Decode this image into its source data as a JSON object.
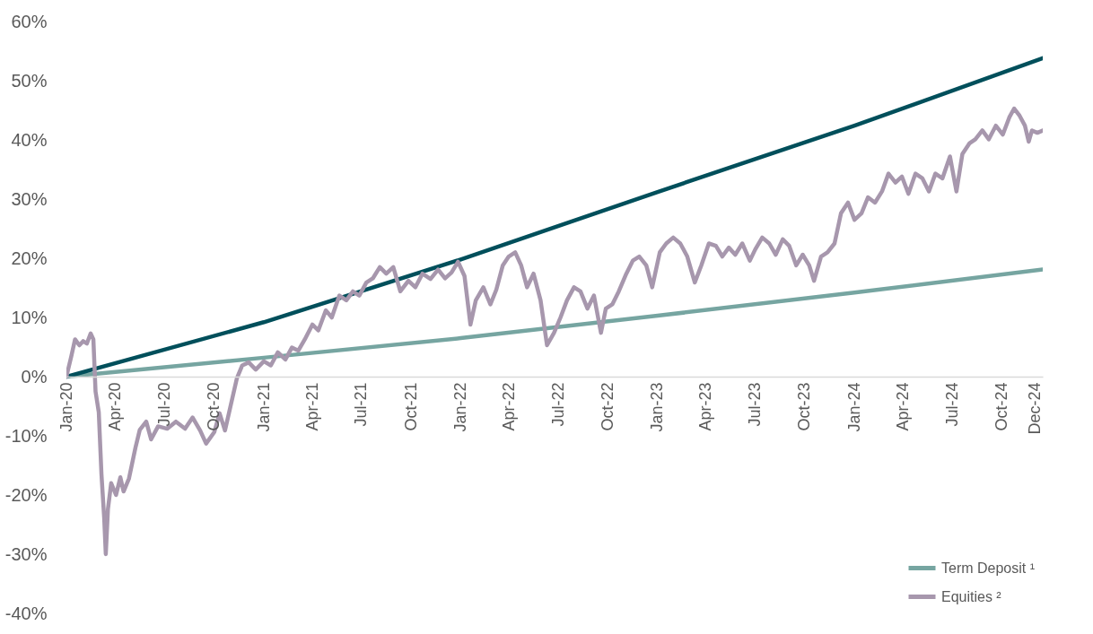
{
  "chart_data": {
    "type": "line",
    "legend": "bottom right",
    "line_style": "solid",
    "xlim": [
      "2020-01-01",
      "2024-12-15"
    ],
    "xticks": [
      {
        "value": "2020-01-01",
        "label": "Jan-20"
      },
      {
        "value": "2020-04-01",
        "label": "Apr-20"
      },
      {
        "value": "2020-07-01",
        "label": "Jul-20"
      },
      {
        "value": "2020-10-01",
        "label": "Oct-20"
      },
      {
        "value": "2021-01-01",
        "label": "Jan-21"
      },
      {
        "value": "2021-04-01",
        "label": "Apr-21"
      },
      {
        "value": "2021-07-01",
        "label": "Jul-21"
      },
      {
        "value": "2021-10-01",
        "label": "Oct-21"
      },
      {
        "value": "2022-01-01",
        "label": "Jan-22"
      },
      {
        "value": "2022-04-01",
        "label": "Apr-22"
      },
      {
        "value": "2022-07-01",
        "label": "Jul-22"
      },
      {
        "value": "2022-10-01",
        "label": "Oct-22"
      },
      {
        "value": "2023-01-01",
        "label": "Jan-23"
      },
      {
        "value": "2023-04-01",
        "label": "Apr-23"
      },
      {
        "value": "2023-07-01",
        "label": "Jul-23"
      },
      {
        "value": "2023-10-01",
        "label": "Oct-23"
      },
      {
        "value": "2024-01-01",
        "label": "Jan-24"
      },
      {
        "value": "2024-04-01",
        "label": "Apr-24"
      },
      {
        "value": "2024-07-01",
        "label": "Jul-24"
      },
      {
        "value": "2024-10-01",
        "label": "Oct-24"
      },
      {
        "value": "2024-12-01",
        "label": "Dec-24"
      }
    ],
    "ylim": [
      -40,
      60
    ],
    "yticks": [
      {
        "value": -40,
        "label": "-40%"
      },
      {
        "value": -30,
        "label": "-30%"
      },
      {
        "value": -20,
        "label": "-20%"
      },
      {
        "value": -10,
        "label": "-10%"
      },
      {
        "value": 0,
        "label": "0%"
      },
      {
        "value": 10,
        "label": "10%"
      },
      {
        "value": 20,
        "label": "20%"
      },
      {
        "value": 30,
        "label": "30%"
      },
      {
        "value": 40,
        "label": "40%"
      },
      {
        "value": 50,
        "label": "50%"
      },
      {
        "value": 60,
        "label": "60%"
      }
    ],
    "series": [
      {
        "name": "Term Deposit ¹",
        "color": "#76a5a1",
        "x": [
          "2020-01-01",
          "2021-01-01",
          "2022-01-01",
          "2023-01-01",
          "2024-01-01",
          "2024-12-15"
        ],
        "values": [
          0,
          3.2,
          6.5,
          10.3,
          14.2,
          18.1
        ]
      },
      {
        "color": "#004f5b",
        "x": [
          "2020-01-01",
          "2021-01-01",
          "2022-01-01",
          "2023-01-01",
          "2024-01-01",
          "2024-12-15"
        ],
        "values": [
          0,
          9.2,
          19.8,
          31.2,
          42.4,
          53.8
        ]
      },
      {
        "name": "Equities ²",
        "color": "#a797ad",
        "x": [
          "2020-01-01",
          "2020-01-10",
          "2020-01-17",
          "2020-01-25",
          "2020-02-01",
          "2020-02-08",
          "2020-02-15",
          "2020-02-20",
          "2020-02-24",
          "2020-03-01",
          "2020-03-06",
          "2020-03-11",
          "2020-03-14",
          "2020-03-18",
          "2020-03-24",
          "2020-04-02",
          "2020-04-10",
          "2020-04-16",
          "2020-04-26",
          "2020-05-08",
          "2020-05-16",
          "2020-05-28",
          "2020-06-06",
          "2020-06-19",
          "2020-07-06",
          "2020-07-22",
          "2020-08-08",
          "2020-08-22",
          "2020-09-05",
          "2020-09-16",
          "2020-10-01",
          "2020-10-11",
          "2020-10-21",
          "2020-11-01",
          "2020-11-12",
          "2020-11-22",
          "2020-12-04",
          "2020-12-17",
          "2021-01-01",
          "2021-01-14",
          "2021-01-27",
          "2021-02-10",
          "2021-02-22",
          "2021-03-06",
          "2021-03-18",
          "2021-04-01",
          "2021-04-12",
          "2021-04-26",
          "2021-05-07",
          "2021-05-21",
          "2021-06-03",
          "2021-06-15",
          "2021-06-27",
          "2021-07-10",
          "2021-07-22",
          "2021-08-04",
          "2021-08-16",
          "2021-08-29",
          "2021-09-11",
          "2021-09-26",
          "2021-10-09",
          "2021-10-22",
          "2021-11-06",
          "2021-11-20",
          "2021-12-03",
          "2021-12-15",
          "2021-12-27",
          "2022-01-08",
          "2022-01-19",
          "2022-01-29",
          "2022-02-12",
          "2022-02-25",
          "2022-03-08",
          "2022-03-20",
          "2022-03-31",
          "2022-04-12",
          "2022-04-23",
          "2022-05-04",
          "2022-05-16",
          "2022-05-29",
          "2022-06-10",
          "2022-06-23",
          "2022-07-05",
          "2022-07-17",
          "2022-07-30",
          "2022-08-11",
          "2022-08-24",
          "2022-09-05",
          "2022-09-18",
          "2022-09-27",
          "2022-10-09",
          "2022-10-21",
          "2022-11-04",
          "2022-11-16",
          "2022-11-28",
          "2022-12-11",
          "2022-12-22",
          "2023-01-05",
          "2023-01-17",
          "2023-01-30",
          "2023-02-12",
          "2023-02-25",
          "2023-03-11",
          "2023-03-23",
          "2023-04-06",
          "2023-04-19",
          "2023-05-01",
          "2023-05-13",
          "2023-05-25",
          "2023-06-07",
          "2023-06-21",
          "2023-07-01",
          "2023-07-14",
          "2023-07-27",
          "2023-08-08",
          "2023-08-21",
          "2023-09-02",
          "2023-09-15",
          "2023-09-27",
          "2023-10-09",
          "2023-10-18",
          "2023-10-31",
          "2023-11-12",
          "2023-11-25",
          "2023-12-07",
          "2023-12-20",
          "2024-01-01",
          "2024-01-14",
          "2024-01-26",
          "2024-02-08",
          "2024-02-21",
          "2024-03-04",
          "2024-03-17",
          "2024-03-29",
          "2024-04-10",
          "2024-04-23",
          "2024-05-06",
          "2024-05-18",
          "2024-05-30",
          "2024-06-12",
          "2024-06-26",
          "2024-07-08",
          "2024-07-19",
          "2024-08-01",
          "2024-08-12",
          "2024-08-25",
          "2024-09-06",
          "2024-09-19",
          "2024-10-02",
          "2024-10-14",
          "2024-10-23",
          "2024-11-02",
          "2024-11-12",
          "2024-11-19",
          "2024-11-25",
          "2024-12-05",
          "2024-12-15"
        ],
        "values": [
          0,
          3.4,
          6.3,
          5.3,
          6,
          5.6,
          7.3,
          6.3,
          -2.5,
          -6,
          -16.5,
          -23.8,
          -30,
          -22.4,
          -18,
          -20,
          -17,
          -19.4,
          -17.2,
          -12,
          -9,
          -7.6,
          -10.6,
          -8.4,
          -8.8,
          -7.6,
          -8.8,
          -6.9,
          -9.1,
          -11.3,
          -9.4,
          -6.2,
          -9.1,
          -4.7,
          -0.3,
          1.9,
          2.4,
          1.2,
          2.6,
          1.9,
          4.1,
          2.9,
          4.9,
          4.4,
          6.3,
          8.8,
          7.8,
          11.2,
          10,
          13.7,
          12.9,
          14.4,
          13.7,
          15.9,
          16.6,
          18.5,
          17.4,
          18.5,
          14.4,
          16.2,
          15.1,
          17.4,
          16.5,
          18.1,
          16.6,
          17.6,
          19.4,
          17,
          8.8,
          12.9,
          15.1,
          12.2,
          14.7,
          18.8,
          20.3,
          21,
          18.8,
          15.1,
          17.4,
          12.9,
          5.3,
          7.4,
          10,
          12.9,
          15.1,
          14.4,
          11.5,
          13.7,
          7.4,
          11.5,
          12.2,
          14.4,
          17.4,
          19.6,
          20.3,
          18.8,
          15.1,
          21,
          22.5,
          23.5,
          22.5,
          20.3,
          15.9,
          18.8,
          22.5,
          22.1,
          20.3,
          21.8,
          20.6,
          22.5,
          19.6,
          21.5,
          23.5,
          22.5,
          20.6,
          23.2,
          22.1,
          18.8,
          20.6,
          18.8,
          16.2,
          20.3,
          21,
          22.5,
          27.6,
          29.4,
          26.5,
          27.6,
          30.3,
          29.4,
          31.3,
          34.3,
          32.8,
          33.8,
          30.9,
          34.3,
          33.5,
          31.3,
          34.3,
          33.5,
          37.2,
          31.3,
          37.6,
          39.4,
          40.1,
          41.6,
          40.1,
          42.4,
          40.9,
          43.8,
          45.3,
          44.1,
          42.4,
          39.7,
          41.6,
          41.2,
          41.6
        ]
      }
    ]
  }
}
